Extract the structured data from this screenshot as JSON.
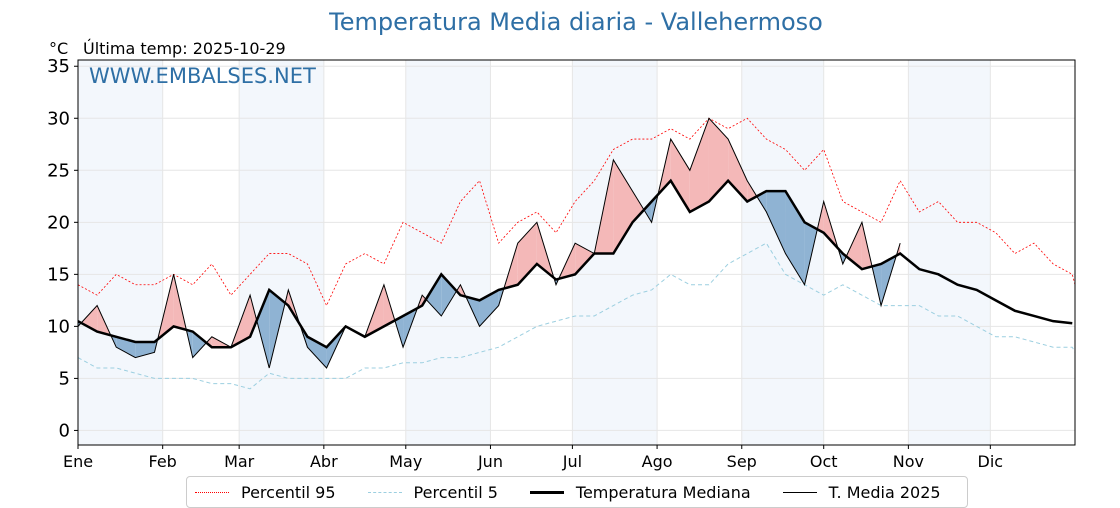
{
  "title": "Temperatura Media diaria - Vallehermoso",
  "unit": "°C",
  "last_temp": "Última temp: 2025-10-29",
  "watermark": "WWW.EMBALSES.NET",
  "legend": [
    {
      "label": "Percentil 95",
      "color": "#ff0000",
      "style": "dotted"
    },
    {
      "label": "Percentil 5",
      "color": "#9ccfe0",
      "style": "dashed"
    },
    {
      "label": "Temperatura Mediana",
      "color": "#000000",
      "style": "thick"
    },
    {
      "label": "T. Media 2025",
      "color": "#000000",
      "style": "thin"
    }
  ],
  "chart_data": {
    "type": "line",
    "title": "Temperatura Media diaria - Vallehermoso",
    "ylabel": "°C",
    "ylim": [
      -1.4,
      35.6
    ],
    "xlim": [
      0,
      365
    ],
    "yticks": [
      0,
      5,
      10,
      15,
      20,
      25,
      30,
      35
    ],
    "months": [
      "Ene",
      "Feb",
      "Mar",
      "Abr",
      "May",
      "Jun",
      "Jul",
      "Ago",
      "Sep",
      "Oct",
      "Nov",
      "Dic"
    ],
    "month_start_day": [
      0,
      31,
      59,
      90,
      120,
      151,
      181,
      212,
      243,
      273,
      304,
      334
    ],
    "x_step_days": 7,
    "series": [
      {
        "name": "Percentil 95",
        "values": [
          14,
          13,
          15,
          14,
          14,
          15,
          14,
          16,
          13,
          15,
          17,
          17,
          16,
          12,
          16,
          17,
          16,
          20,
          19,
          18,
          22,
          24,
          18,
          20,
          21,
          19,
          22,
          24,
          27,
          28,
          28,
          29,
          28,
          30,
          29,
          30,
          28,
          27,
          25,
          27,
          22,
          21,
          20,
          24,
          21,
          22,
          20,
          20,
          19,
          17,
          18,
          16,
          15,
          14,
          14
        ]
      },
      {
        "name": "Percentil 5",
        "values": [
          7,
          6,
          6,
          5.5,
          5,
          5,
          5,
          4.5,
          4.5,
          4,
          5.5,
          5,
          5,
          5,
          5,
          6,
          6,
          6.5,
          6.5,
          7,
          7,
          7.5,
          8,
          9,
          10,
          10.5,
          11,
          11,
          12,
          13,
          13.5,
          15,
          14,
          14,
          16,
          17,
          18,
          15,
          14,
          13,
          14,
          13,
          12,
          12,
          12,
          11,
          11,
          10,
          9,
          9,
          8.5,
          8,
          8,
          7.5,
          7.5,
          7
        ]
      },
      {
        "name": "Temperatura Mediana",
        "values": [
          10.5,
          9.5,
          9,
          8.5,
          8.5,
          10,
          9.5,
          8,
          8,
          9,
          13.5,
          12,
          9,
          8,
          10,
          9,
          10,
          11,
          12,
          15,
          13,
          12.5,
          13.5,
          14,
          16,
          14.5,
          15,
          17,
          17,
          20,
          22,
          24,
          21,
          22,
          24,
          22,
          23,
          23,
          20,
          19,
          17,
          15.5,
          16,
          17,
          15.5,
          15,
          14,
          13.5,
          12.5,
          11.5,
          11,
          10.5,
          10.3
        ]
      },
      {
        "name": "T. Media 2025",
        "values": [
          10,
          12,
          8,
          7,
          7.5,
          15,
          7,
          9,
          8,
          13,
          6,
          13.5,
          8,
          6,
          10,
          9,
          14,
          8,
          13,
          11,
          14,
          10,
          12,
          18,
          20,
          14,
          18,
          17,
          26,
          23,
          20,
          28,
          25,
          30,
          28,
          24,
          21,
          17,
          14,
          22,
          16,
          20,
          12,
          18
        ]
      }
    ],
    "fill_above_color": "#f4b8b8",
    "fill_below_color": "#8fb3d3"
  }
}
